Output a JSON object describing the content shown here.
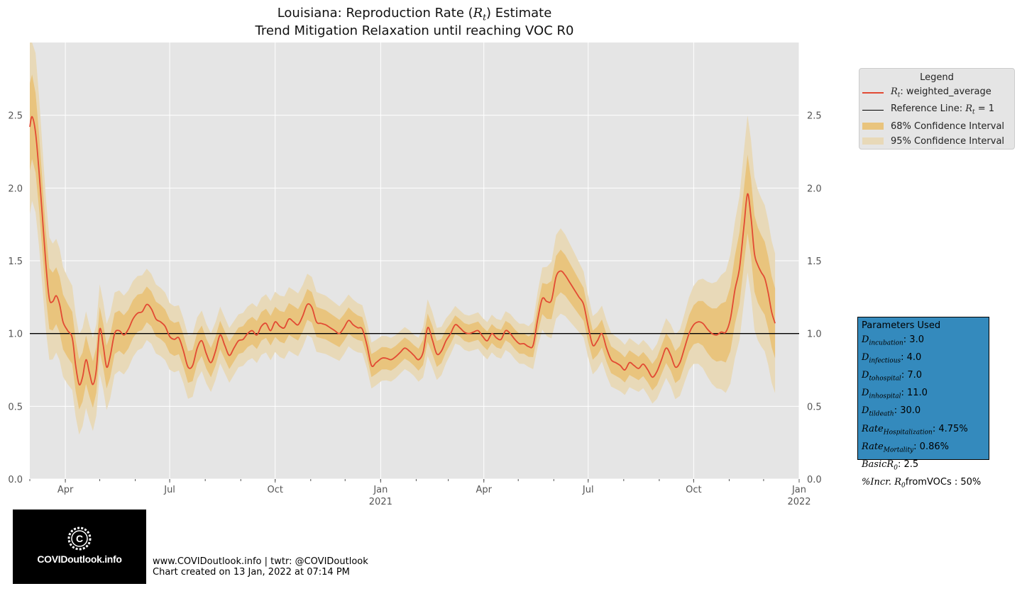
{
  "chart_data": {
    "type": "line",
    "title": "Louisiana: Reproduction Rate (R_t) Estimate",
    "subtitle": "Trend Mitigation Relaxation until reaching VOC R0",
    "xlim": [
      "2020-03-01",
      "2022-01-01"
    ],
    "ylim": [
      0,
      3.0
    ],
    "yticks": [
      0.0,
      0.5,
      1.0,
      1.5,
      2.0,
      2.5
    ],
    "ytick_labels": [
      "0.0",
      "0.5",
      "1.0",
      "1.5",
      "2.0",
      "2.5"
    ],
    "xticks": [
      {
        "date": "2020-04-01",
        "label": "Apr",
        "sub": ""
      },
      {
        "date": "2020-07-01",
        "label": "Jul",
        "sub": ""
      },
      {
        "date": "2020-10-01",
        "label": "Oct",
        "sub": ""
      },
      {
        "date": "2021-01-01",
        "label": "Jan",
        "sub": "2021"
      },
      {
        "date": "2021-04-01",
        "label": "Apr",
        "sub": ""
      },
      {
        "date": "2021-07-01",
        "label": "Jul",
        "sub": ""
      },
      {
        "date": "2021-10-01",
        "label": "Oct",
        "sub": ""
      },
      {
        "date": "2022-01-01",
        "label": "Jan",
        "sub": "2022"
      }
    ],
    "grid": true,
    "legend_position": "upper-right outside",
    "reference_line": 1.0,
    "series": [
      {
        "name": "R_t: weighted_average",
        "color": "#e24a33",
        "points": [
          [
            "2020-03-01",
            2.42
          ],
          [
            "2020-03-03",
            2.49
          ],
          [
            "2020-03-06",
            2.38
          ],
          [
            "2020-03-09",
            2.12
          ],
          [
            "2020-03-12",
            1.8
          ],
          [
            "2020-03-15",
            1.48
          ],
          [
            "2020-03-18",
            1.24
          ],
          [
            "2020-03-21",
            1.22
          ],
          [
            "2020-03-24",
            1.26
          ],
          [
            "2020-03-27",
            1.2
          ],
          [
            "2020-03-30",
            1.08
          ],
          [
            "2020-04-03",
            1.02
          ],
          [
            "2020-04-07",
            0.97
          ],
          [
            "2020-04-10",
            0.78
          ],
          [
            "2020-04-13",
            0.65
          ],
          [
            "2020-04-16",
            0.7
          ],
          [
            "2020-04-19",
            0.82
          ],
          [
            "2020-04-22",
            0.73
          ],
          [
            "2020-04-25",
            0.65
          ],
          [
            "2020-04-28",
            0.75
          ],
          [
            "2020-05-01",
            1.03
          ],
          [
            "2020-05-04",
            0.92
          ],
          [
            "2020-05-07",
            0.77
          ],
          [
            "2020-05-10",
            0.84
          ],
          [
            "2020-05-14",
            1.0
          ],
          [
            "2020-05-18",
            1.02
          ],
          [
            "2020-05-22",
            0.99
          ],
          [
            "2020-05-26",
            1.03
          ],
          [
            "2020-05-30",
            1.1
          ],
          [
            "2020-06-03",
            1.14
          ],
          [
            "2020-06-07",
            1.15
          ],
          [
            "2020-06-11",
            1.2
          ],
          [
            "2020-06-15",
            1.17
          ],
          [
            "2020-06-19",
            1.1
          ],
          [
            "2020-06-23",
            1.08
          ],
          [
            "2020-06-27",
            1.05
          ],
          [
            "2020-07-01",
            0.98
          ],
          [
            "2020-07-05",
            0.96
          ],
          [
            "2020-07-09",
            0.97
          ],
          [
            "2020-07-13",
            0.88
          ],
          [
            "2020-07-17",
            0.77
          ],
          [
            "2020-07-21",
            0.78
          ],
          [
            "2020-07-25",
            0.9
          ],
          [
            "2020-07-29",
            0.95
          ],
          [
            "2020-08-02",
            0.86
          ],
          [
            "2020-08-06",
            0.8
          ],
          [
            "2020-08-10",
            0.88
          ],
          [
            "2020-08-14",
            0.99
          ],
          [
            "2020-08-18",
            0.92
          ],
          [
            "2020-08-22",
            0.85
          ],
          [
            "2020-08-26",
            0.9
          ],
          [
            "2020-08-30",
            0.95
          ],
          [
            "2020-09-03",
            0.96
          ],
          [
            "2020-09-07",
            1.0
          ],
          [
            "2020-09-11",
            1.02
          ],
          [
            "2020-09-15",
            0.99
          ],
          [
            "2020-09-19",
            1.05
          ],
          [
            "2020-09-23",
            1.07
          ],
          [
            "2020-09-27",
            1.02
          ],
          [
            "2020-10-01",
            1.08
          ],
          [
            "2020-10-05",
            1.05
          ],
          [
            "2020-10-09",
            1.04
          ],
          [
            "2020-10-13",
            1.1
          ],
          [
            "2020-10-17",
            1.08
          ],
          [
            "2020-10-21",
            1.06
          ],
          [
            "2020-10-25",
            1.12
          ],
          [
            "2020-10-29",
            1.2
          ],
          [
            "2020-11-02",
            1.18
          ],
          [
            "2020-11-06",
            1.08
          ],
          [
            "2020-11-10",
            1.07
          ],
          [
            "2020-11-14",
            1.06
          ],
          [
            "2020-11-18",
            1.04
          ],
          [
            "2020-11-22",
            1.02
          ],
          [
            "2020-11-26",
            1.0
          ],
          [
            "2020-11-30",
            1.04
          ],
          [
            "2020-12-04",
            1.09
          ],
          [
            "2020-12-08",
            1.06
          ],
          [
            "2020-12-12",
            1.04
          ],
          [
            "2020-12-16",
            1.03
          ],
          [
            "2020-12-20",
            0.92
          ],
          [
            "2020-12-24",
            0.78
          ],
          [
            "2020-12-28",
            0.8
          ],
          [
            "2021-01-02",
            0.83
          ],
          [
            "2021-01-06",
            0.83
          ],
          [
            "2021-01-10",
            0.82
          ],
          [
            "2021-01-14",
            0.84
          ],
          [
            "2021-01-18",
            0.87
          ],
          [
            "2021-01-22",
            0.9
          ],
          [
            "2021-01-26",
            0.88
          ],
          [
            "2021-01-30",
            0.85
          ],
          [
            "2021-02-03",
            0.82
          ],
          [
            "2021-02-07",
            0.87
          ],
          [
            "2021-02-11",
            1.04
          ],
          [
            "2021-02-15",
            0.96
          ],
          [
            "2021-02-19",
            0.86
          ],
          [
            "2021-02-23",
            0.88
          ],
          [
            "2021-02-27",
            0.95
          ],
          [
            "2021-03-03",
            1.0
          ],
          [
            "2021-03-07",
            1.06
          ],
          [
            "2021-03-11",
            1.04
          ],
          [
            "2021-03-15",
            1.01
          ],
          [
            "2021-03-19",
            1.0
          ],
          [
            "2021-03-23",
            1.01
          ],
          [
            "2021-03-27",
            1.02
          ],
          [
            "2021-03-31",
            0.98
          ],
          [
            "2021-04-04",
            0.95
          ],
          [
            "2021-04-08",
            1.0
          ],
          [
            "2021-04-12",
            0.97
          ],
          [
            "2021-04-16",
            0.96
          ],
          [
            "2021-04-20",
            1.02
          ],
          [
            "2021-04-24",
            1.0
          ],
          [
            "2021-04-28",
            0.96
          ],
          [
            "2021-05-02",
            0.93
          ],
          [
            "2021-05-06",
            0.93
          ],
          [
            "2021-05-10",
            0.91
          ],
          [
            "2021-05-14",
            0.92
          ],
          [
            "2021-05-18",
            1.1
          ],
          [
            "2021-05-22",
            1.24
          ],
          [
            "2021-05-26",
            1.22
          ],
          [
            "2021-05-30",
            1.23
          ],
          [
            "2021-06-03",
            1.39
          ],
          [
            "2021-06-07",
            1.43
          ],
          [
            "2021-06-11",
            1.4
          ],
          [
            "2021-06-15",
            1.35
          ],
          [
            "2021-06-19",
            1.3
          ],
          [
            "2021-06-23",
            1.25
          ],
          [
            "2021-06-27",
            1.2
          ],
          [
            "2021-07-01",
            1.05
          ],
          [
            "2021-07-05",
            0.92
          ],
          [
            "2021-07-09",
            0.95
          ],
          [
            "2021-07-13",
            1.0
          ],
          [
            "2021-07-17",
            0.9
          ],
          [
            "2021-07-21",
            0.82
          ],
          [
            "2021-07-25",
            0.8
          ],
          [
            "2021-07-29",
            0.78
          ],
          [
            "2021-08-02",
            0.75
          ],
          [
            "2021-08-06",
            0.8
          ],
          [
            "2021-08-10",
            0.78
          ],
          [
            "2021-08-14",
            0.76
          ],
          [
            "2021-08-18",
            0.79
          ],
          [
            "2021-08-22",
            0.75
          ],
          [
            "2021-08-26",
            0.7
          ],
          [
            "2021-08-30",
            0.74
          ],
          [
            "2021-09-03",
            0.82
          ],
          [
            "2021-09-07",
            0.9
          ],
          [
            "2021-09-11",
            0.85
          ],
          [
            "2021-09-15",
            0.77
          ],
          [
            "2021-09-19",
            0.8
          ],
          [
            "2021-09-23",
            0.9
          ],
          [
            "2021-09-27",
            1.0
          ],
          [
            "2021-10-01",
            1.06
          ],
          [
            "2021-10-05",
            1.08
          ],
          [
            "2021-10-09",
            1.07
          ],
          [
            "2021-10-13",
            1.03
          ],
          [
            "2021-10-17",
            1.0
          ],
          [
            "2021-10-21",
            0.99
          ],
          [
            "2021-10-25",
            1.01
          ],
          [
            "2021-10-29",
            1.01
          ],
          [
            "2021-11-02",
            1.1
          ],
          [
            "2021-11-06",
            1.3
          ],
          [
            "2021-11-10",
            1.45
          ],
          [
            "2021-11-14",
            1.75
          ],
          [
            "2021-11-17",
            1.96
          ],
          [
            "2021-11-20",
            1.8
          ],
          [
            "2021-11-23",
            1.55
          ],
          [
            "2021-11-26",
            1.47
          ],
          [
            "2021-11-29",
            1.42
          ],
          [
            "2021-12-02",
            1.38
          ],
          [
            "2021-12-05",
            1.28
          ],
          [
            "2021-12-08",
            1.15
          ],
          [
            "2021-12-11",
            1.07
          ]
        ]
      }
    ],
    "bands": [
      {
        "name": "95% Confidence Interval",
        "color": "#e8d9b8",
        "half_width_scale": 2.0
      },
      {
        "name": "68% Confidence Interval",
        "color": "#e9c47d",
        "half_width_scale": 1.0
      }
    ],
    "band_halfwidth_68": [
      [
        "2020-03-01",
        0.3
      ],
      [
        "2020-03-20",
        0.2
      ],
      [
        "2020-04-15",
        0.17
      ],
      [
        "2020-05-15",
        0.14
      ],
      [
        "2020-06-15",
        0.12
      ],
      [
        "2020-07-15",
        0.11
      ],
      [
        "2020-09-01",
        0.09
      ],
      [
        "2020-10-15",
        0.11
      ],
      [
        "2020-11-15",
        0.1
      ],
      [
        "2020-12-20",
        0.08
      ],
      [
        "2021-02-01",
        0.07
      ],
      [
        "2021-02-12",
        0.1
      ],
      [
        "2021-03-10",
        0.06
      ],
      [
        "2021-05-10",
        0.07
      ],
      [
        "2021-06-05",
        0.15
      ],
      [
        "2021-07-05",
        0.1
      ],
      [
        "2021-08-15",
        0.08
      ],
      [
        "2021-09-25",
        0.12
      ],
      [
        "2021-10-20",
        0.18
      ],
      [
        "2021-11-17",
        0.27
      ],
      [
        "2021-12-11",
        0.24
      ]
    ]
  },
  "legend": {
    "title": "Legend",
    "items": [
      {
        "label": "R_t: weighted_average",
        "kind": "line",
        "color": "#e24a33"
      },
      {
        "label": "Reference Line: R_t = 1",
        "kind": "line",
        "color": "#000000"
      },
      {
        "label": "68% Confidence Interval",
        "kind": "box",
        "color": "#e9c47d"
      },
      {
        "label": "95% Confidence Interval",
        "kind": "box",
        "color": "#e8d9b8"
      }
    ]
  },
  "parameters": {
    "title": "Parameters Used",
    "rows": [
      {
        "name": "D",
        "sub": "incubation",
        "value": ": 3.0"
      },
      {
        "name": "D",
        "sub": "infectious",
        "value": ": 4.0"
      },
      {
        "name": "D",
        "sub": "tohospital",
        "value": ": 7.0"
      },
      {
        "name": "D",
        "sub": "inhospital",
        "value": ": 11.0"
      },
      {
        "name": "D",
        "sub": "tildeath",
        "value": ": 30.0"
      },
      {
        "name": "Rate",
        "sub": "Hospitalization",
        "value": ": 4.75%"
      },
      {
        "name": "Rate",
        "sub": "Mortality",
        "value": ": 0.86%"
      },
      {
        "name": "BasicR",
        "sub": "0",
        "value": ": 2.5"
      },
      {
        "name": "%Incr. R",
        "sub": "0",
        "value": "fromVOCs : 50%"
      }
    ]
  },
  "logo": {
    "text": "COVIDoutlook.info"
  },
  "footer": {
    "line1": "www.COVIDoutlook.info | twtr: @COVIDoutlook",
    "line2": "Chart created on 13 Jan, 2022 at 07:14 PM"
  },
  "colors": {
    "plot_background": "#e5e5e5",
    "grid": "#ffffff",
    "text": "#555555"
  }
}
